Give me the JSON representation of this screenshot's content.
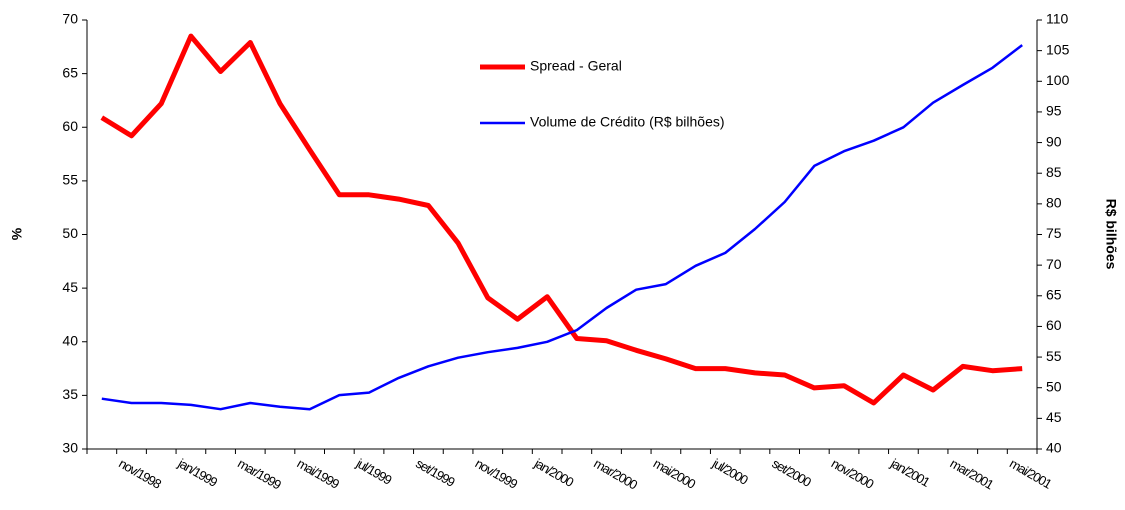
{
  "chart_data": {
    "type": "line",
    "categories": [
      null,
      "nov/1998",
      null,
      "jan/1999",
      null,
      "mar/1999",
      null,
      "mai/1999",
      null,
      "jul/1999",
      null,
      "set/1999",
      null,
      "nov/1999",
      null,
      "jan/2000",
      null,
      "mar/2000",
      null,
      "mai/2000",
      null,
      "jul/2000",
      null,
      "set/2000",
      null,
      "nov/2000",
      null,
      "jan/2001",
      null,
      "mar/2001",
      null,
      "mai/2001"
    ],
    "series": [
      {
        "name": "Spread - Geral",
        "color": "#ff0000",
        "axis": "y",
        "values": [
          60.9,
          59.2,
          62.2,
          68.5,
          65.2,
          67.9,
          62.2,
          57.9,
          53.7,
          53.7,
          53.3,
          52.7,
          49.2,
          44.1,
          42.1,
          44.2,
          40.3,
          40.1,
          39.2,
          38.4,
          37.5,
          37.5,
          37.1,
          36.9,
          35.7,
          35.9,
          34.3,
          36.9,
          35.5,
          37.7,
          37.3,
          37.5
        ]
      },
      {
        "name": "Volume de Crédito (R$ bilhões)",
        "color": "#0000ff",
        "axis": "y2",
        "values": [
          48.2,
          47.5,
          47.5,
          47.2,
          46.5,
          47.5,
          46.9,
          46.5,
          48.8,
          49.2,
          51.6,
          53.5,
          54.9,
          55.8,
          56.5,
          57.5,
          59.4,
          63.0,
          66.0,
          66.9,
          69.9,
          72.0,
          75.9,
          80.3,
          86.2,
          88.6,
          90.3,
          92.5,
          96.5,
          99.4,
          102.2,
          105.9
        ]
      }
    ],
    "y_label": "%",
    "y2_label": "R$ bilhões",
    "ylim": [
      30,
      70
    ],
    "yticks": [
      30,
      35,
      40,
      45,
      50,
      55,
      60,
      65,
      70
    ],
    "y2lim": [
      40,
      110
    ],
    "y2ticks": [
      40,
      45,
      50,
      55,
      60,
      65,
      70,
      75,
      80,
      85,
      90,
      95,
      100,
      105,
      110
    ],
    "legend": "upper center",
    "grid": false
  }
}
